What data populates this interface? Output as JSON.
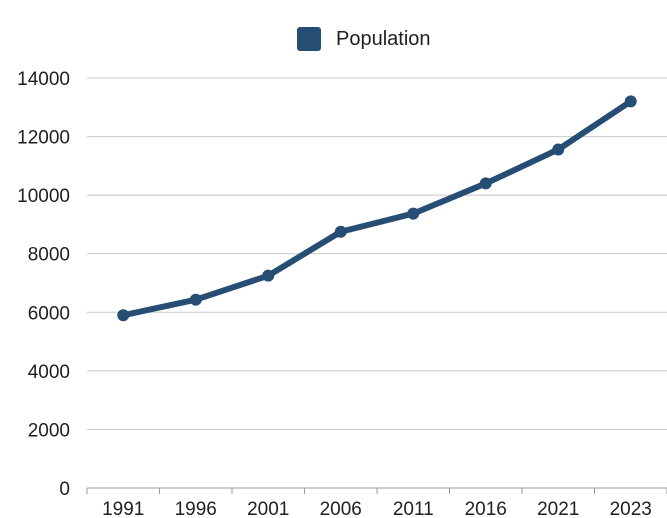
{
  "chart_data": {
    "type": "line",
    "title": "",
    "xlabel": "",
    "ylabel": "",
    "x": [
      "1991",
      "1996",
      "2001",
      "2006",
      "2011",
      "2016",
      "2021",
      "2023"
    ],
    "series": [
      {
        "name": "Population",
        "values": [
          5900,
          6430,
          7250,
          8750,
          9370,
          10400,
          11560,
          13200
        ]
      }
    ],
    "ylim": [
      0,
      14000
    ],
    "yticks": [
      "0",
      "2000",
      "4000",
      "6000",
      "8000",
      "10000",
      "12000",
      "14000"
    ],
    "grid": true,
    "legend_position": "top-center",
    "colors": {
      "series": "#264d73",
      "grid": "#c8c8c8",
      "axis": "#9a9a9a",
      "text": "#1f1f1f"
    }
  }
}
